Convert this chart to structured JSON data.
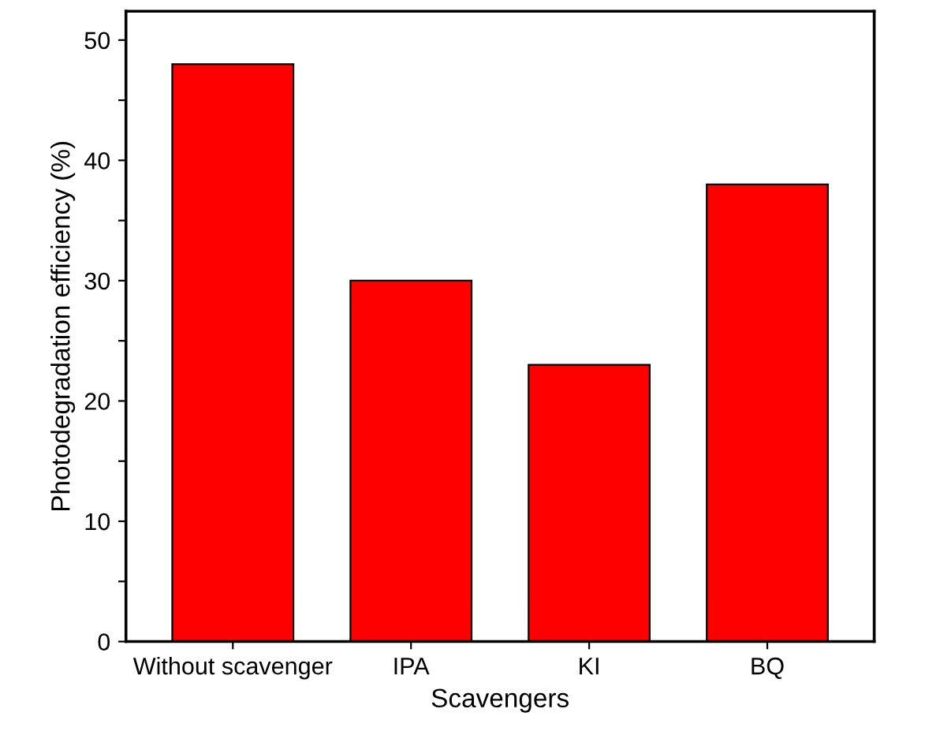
{
  "chart_data": {
    "type": "bar",
    "xlabel": "Scavengers",
    "ylabel": "Photodegradation efficiency (%)",
    "categories": [
      "Without scavenger",
      "IPA",
      "KI",
      "BQ"
    ],
    "values": [
      48,
      30,
      23,
      38
    ],
    "color": "#ff0000",
    "ylim": [
      0,
      52.4
    ],
    "yticks": [
      0,
      {
        "value": 5,
        "label": null
      },
      10,
      {
        "value": 15,
        "label": null
      },
      20,
      {
        "value": 25,
        "label": null
      },
      30,
      {
        "value": 35,
        "label": null
      },
      40,
      {
        "value": 45,
        "label": null
      },
      50
    ],
    "grid": false
  }
}
